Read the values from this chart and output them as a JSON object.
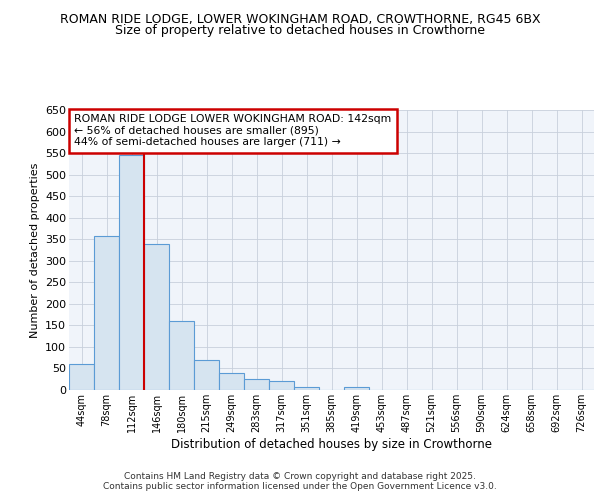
{
  "title1": "ROMAN RIDE LODGE, LOWER WOKINGHAM ROAD, CROWTHORNE, RG45 6BX",
  "title2": "Size of property relative to detached houses in Crowthorne",
  "xlabel": "Distribution of detached houses by size in Crowthorne",
  "ylabel": "Number of detached properties",
  "categories": [
    "44sqm",
    "78sqm",
    "112sqm",
    "146sqm",
    "180sqm",
    "215sqm",
    "249sqm",
    "283sqm",
    "317sqm",
    "351sqm",
    "385sqm",
    "419sqm",
    "453sqm",
    "487sqm",
    "521sqm",
    "556sqm",
    "590sqm",
    "624sqm",
    "658sqm",
    "692sqm",
    "726sqm"
  ],
  "values": [
    60,
    357,
    545,
    338,
    160,
    70,
    40,
    25,
    20,
    8,
    0,
    8,
    0,
    0,
    0,
    0,
    0,
    0,
    0,
    0,
    0
  ],
  "bar_color": "#d6e4f0",
  "bar_edge_color": "#5b9bd5",
  "highlight_index": 3,
  "highlight_color": "#cc0000",
  "ylim": [
    0,
    650
  ],
  "yticks": [
    0,
    50,
    100,
    150,
    200,
    250,
    300,
    350,
    400,
    450,
    500,
    550,
    600,
    650
  ],
  "annotation_title": "ROMAN RIDE LODGE LOWER WOKINGHAM ROAD: 142sqm",
  "annotation_line1": "← 56% of detached houses are smaller (895)",
  "annotation_line2": "44% of semi-detached houses are larger (711) →",
  "annotation_box_color": "#ffffff",
  "annotation_box_edge": "#cc0000",
  "footer1": "Contains HM Land Registry data © Crown copyright and database right 2025.",
  "footer2": "Contains public sector information licensed under the Open Government Licence v3.0.",
  "bg_color": "#ffffff",
  "plot_bg_color": "#f0f4fa",
  "grid_color": "#c8d0dc"
}
